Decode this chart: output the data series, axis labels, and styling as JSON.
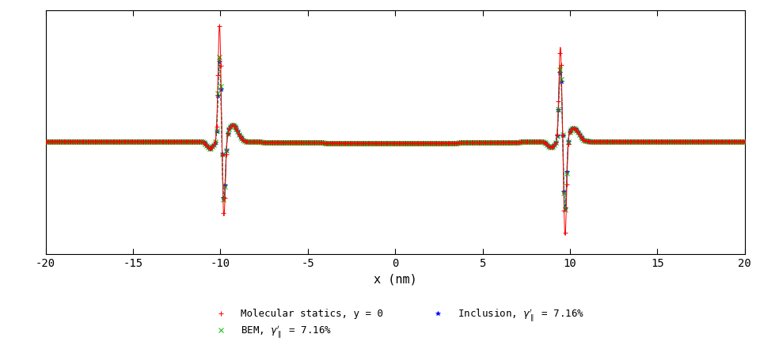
{
  "title": "",
  "xlabel": "x (nm)",
  "ylabel": "",
  "xlim": [
    -20,
    20
  ],
  "xticks": [
    -20,
    -15,
    -10,
    -5,
    0,
    5,
    10,
    15,
    20
  ],
  "xtick_labels": [
    "-20",
    "-15",
    "-10",
    "-5",
    "0",
    "5",
    "10",
    "15",
    "20"
  ],
  "legend_entries": [
    {
      "label": "Molecular statics, y = 0",
      "color": "#ff0000",
      "linestyle": "-",
      "marker": "+"
    },
    {
      "label": "BEM, y_II = 7.16%",
      "color": "#00cc00",
      "linestyle": "--",
      "marker": "x"
    },
    {
      "label": "Inclusion, y_II = 7.16%",
      "color": "#0000ff",
      "linestyle": "--",
      "marker": "*"
    }
  ],
  "lc": -10.0,
  "rc": 9.5,
  "ylim": [
    -1.2,
    1.5
  ],
  "baseline": 0.05,
  "figsize": [
    9.6,
    4.46
  ],
  "dpi": 100
}
